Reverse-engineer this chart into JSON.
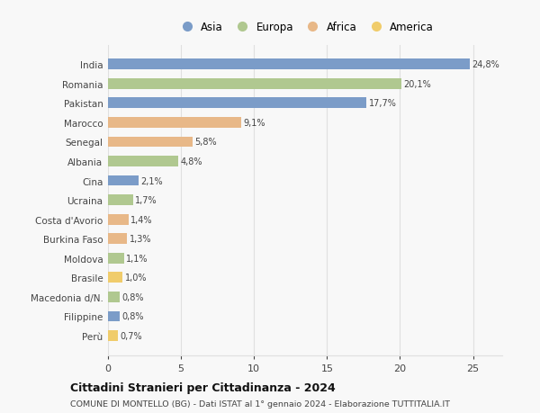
{
  "countries": [
    "India",
    "Romania",
    "Pakistan",
    "Marocco",
    "Senegal",
    "Albania",
    "Cina",
    "Ucraina",
    "Costa d'Avorio",
    "Burkina Faso",
    "Moldova",
    "Brasile",
    "Macedonia d/N.",
    "Filippine",
    "Perù"
  ],
  "values": [
    24.8,
    20.1,
    17.7,
    9.1,
    5.8,
    4.8,
    2.1,
    1.7,
    1.4,
    1.3,
    1.1,
    1.0,
    0.8,
    0.8,
    0.7
  ],
  "labels": [
    "24,8%",
    "20,1%",
    "17,7%",
    "9,1%",
    "5,8%",
    "4,8%",
    "2,1%",
    "1,7%",
    "1,4%",
    "1,3%",
    "1,1%",
    "1,0%",
    "0,8%",
    "0,8%",
    "0,7%"
  ],
  "continents": [
    "Asia",
    "Europa",
    "Asia",
    "Africa",
    "Africa",
    "Europa",
    "Asia",
    "Europa",
    "Africa",
    "Africa",
    "Europa",
    "America",
    "Europa",
    "Asia",
    "America"
  ],
  "colors": {
    "Asia": "#7b9cc8",
    "Europa": "#b0c890",
    "Africa": "#e8b888",
    "America": "#f0cc6b"
  },
  "legend_order": [
    "Asia",
    "Europa",
    "Africa",
    "America"
  ],
  "title": "Cittadini Stranieri per Cittadinanza - 2024",
  "subtitle": "COMUNE DI MONTELLO (BG) - Dati ISTAT al 1° gennaio 2024 - Elaborazione TUTTITALIA.IT",
  "xlim": [
    0,
    27
  ],
  "xticks": [
    0,
    5,
    10,
    15,
    20,
    25
  ],
  "background_color": "#f8f8f8",
  "grid_color": "#e0e0e0"
}
